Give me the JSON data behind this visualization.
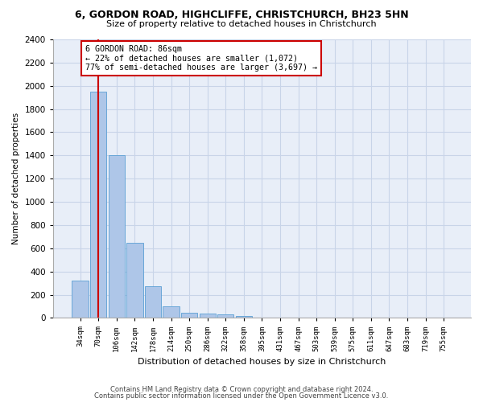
{
  "title_line1": "6, GORDON ROAD, HIGHCLIFFE, CHRISTCHURCH, BH23 5HN",
  "title_line2": "Size of property relative to detached houses in Christchurch",
  "xlabel": "Distribution of detached houses by size in Christchurch",
  "ylabel": "Number of detached properties",
  "categories": [
    "34sqm",
    "70sqm",
    "106sqm",
    "142sqm",
    "178sqm",
    "214sqm",
    "250sqm",
    "286sqm",
    "322sqm",
    "358sqm",
    "395sqm",
    "431sqm",
    "467sqm",
    "503sqm",
    "539sqm",
    "575sqm",
    "611sqm",
    "647sqm",
    "683sqm",
    "719sqm",
    "755sqm"
  ],
  "bar_values": [
    320,
    1950,
    1400,
    645,
    270,
    100,
    47,
    38,
    27,
    20,
    0,
    0,
    0,
    0,
    0,
    0,
    0,
    0,
    0,
    0,
    0
  ],
  "bar_color": "#aec6e8",
  "bar_edgecolor": "#5a9fd4",
  "vline_x": 1.0,
  "vline_color": "#cc0000",
  "annotation_text": "6 GORDON ROAD: 86sqm\n← 22% of detached houses are smaller (1,072)\n77% of semi-detached houses are larger (3,697) →",
  "annotation_box_color": "#cc0000",
  "ylim": [
    0,
    2400
  ],
  "yticks": [
    0,
    200,
    400,
    600,
    800,
    1000,
    1200,
    1400,
    1600,
    1800,
    2000,
    2200,
    2400
  ],
  "grid_color": "#c8d4e8",
  "bg_color": "#e8eef8",
  "footnote1": "Contains HM Land Registry data © Crown copyright and database right 2024.",
  "footnote2": "Contains public sector information licensed under the Open Government Licence v3.0."
}
